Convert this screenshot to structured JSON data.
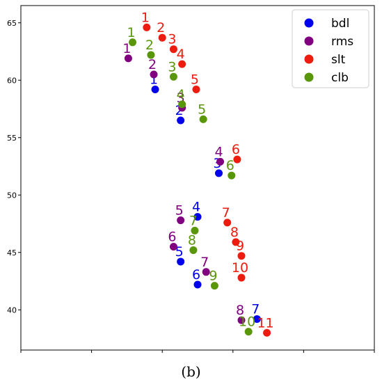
{
  "chart_data": {
    "type": "scatter",
    "caption": "(b)",
    "xlim": [
      -40,
      -15
    ],
    "ylim": [
      36.5,
      66.5
    ],
    "x_ticks": [
      -40,
      -35,
      -30,
      -25,
      -20,
      -15
    ],
    "y_ticks": [
      40,
      45,
      50,
      55,
      60,
      65
    ],
    "grid": false,
    "legend_position": "top-right",
    "series": [
      {
        "name": "bdl",
        "color": "#0000ee",
        "points": [
          {
            "x": -30.5,
            "y": 59.2,
            "label": "1"
          },
          {
            "x": -28.7,
            "y": 56.5,
            "label": "2"
          },
          {
            "x": -26.0,
            "y": 51.9,
            "label": "3"
          },
          {
            "x": -27.5,
            "y": 48.1,
            "label": "4"
          },
          {
            "x": -28.7,
            "y": 44.2,
            "label": "5"
          },
          {
            "x": -27.5,
            "y": 42.2,
            "label": "6"
          },
          {
            "x": -23.3,
            "y": 39.2,
            "label": "7"
          }
        ]
      },
      {
        "name": "rms",
        "color": "#800080",
        "points": [
          {
            "x": -32.4,
            "y": 61.9,
            "label": "1"
          },
          {
            "x": -30.6,
            "y": 60.5,
            "label": "2"
          },
          {
            "x": -28.6,
            "y": 57.6,
            "label": "3"
          },
          {
            "x": -25.9,
            "y": 52.9,
            "label": "4"
          },
          {
            "x": -28.7,
            "y": 47.8,
            "label": "5"
          },
          {
            "x": -29.2,
            "y": 45.5,
            "label": "6"
          },
          {
            "x": -26.9,
            "y": 43.3,
            "label": "7"
          },
          {
            "x": -24.4,
            "y": 39.1,
            "label": "8"
          }
        ]
      },
      {
        "name": "slt",
        "color": "#ee1c0e",
        "points": [
          {
            "x": -31.1,
            "y": 64.6,
            "label": "1"
          },
          {
            "x": -30.0,
            "y": 63.7,
            "label": "2"
          },
          {
            "x": -29.2,
            "y": 62.7,
            "label": "3"
          },
          {
            "x": -28.6,
            "y": 61.4,
            "label": "4"
          },
          {
            "x": -27.6,
            "y": 59.2,
            "label": "5"
          },
          {
            "x": -24.7,
            "y": 53.1,
            "label": "6"
          },
          {
            "x": -25.4,
            "y": 47.6,
            "label": "7"
          },
          {
            "x": -24.8,
            "y": 45.9,
            "label": "8"
          },
          {
            "x": -24.4,
            "y": 44.7,
            "label": "9"
          },
          {
            "x": -24.4,
            "y": 42.8,
            "label": "10"
          },
          {
            "x": -22.6,
            "y": 38.0,
            "label": "11"
          }
        ]
      },
      {
        "name": "clb",
        "color": "#5a960a",
        "points": [
          {
            "x": -32.1,
            "y": 63.3,
            "label": "1"
          },
          {
            "x": -30.8,
            "y": 62.2,
            "label": "2"
          },
          {
            "x": -29.2,
            "y": 60.3,
            "label": "3"
          },
          {
            "x": -28.6,
            "y": 57.9,
            "label": "4"
          },
          {
            "x": -27.1,
            "y": 56.6,
            "label": "5"
          },
          {
            "x": -25.1,
            "y": 51.7,
            "label": "6"
          },
          {
            "x": -27.7,
            "y": 46.9,
            "label": "7"
          },
          {
            "x": -27.8,
            "y": 45.2,
            "label": "8"
          },
          {
            "x": -26.3,
            "y": 42.1,
            "label": "9"
          },
          {
            "x": -23.9,
            "y": 38.1,
            "label": "10"
          }
        ]
      }
    ]
  }
}
